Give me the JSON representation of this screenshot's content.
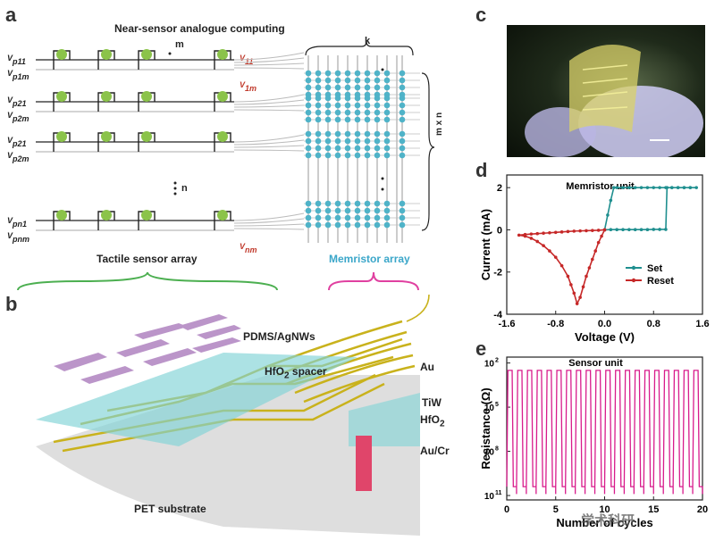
{
  "panels": {
    "a": {
      "label": "a",
      "title": "Near-sensor analogue computing",
      "m_label": "m",
      "k_label": "k",
      "n_label": "n",
      "mxn_label": "m x n",
      "dots": "• • •",
      "row_labels": [
        [
          "V",
          "p11",
          "V",
          "p1m"
        ],
        [
          "V",
          "p21",
          "V",
          "p2m"
        ],
        [
          "V",
          "p21",
          "V",
          "p2m"
        ],
        [
          "V",
          "pn1",
          "V",
          "pnm"
        ]
      ],
      "out_labels": [
        "V",
        "11",
        "V",
        "1m",
        "V",
        "nm"
      ],
      "caption_left": "Tactile sensor array",
      "caption_right": "Memristor array"
    },
    "b": {
      "label": "b",
      "layers": [
        "PDMS/AgNWs",
        "HfO",
        "2",
        " spacer",
        "Au",
        "TiW",
        "HfO",
        "2",
        "Au/Cr",
        "PET substrate"
      ]
    },
    "c": {
      "label": "c"
    },
    "d": {
      "label": "d"
    },
    "e": {
      "label": "e"
    },
    "watermark": "学术科研"
  },
  "chart_data": [
    {
      "type": "line",
      "panel": "d",
      "title": "Memristor unit",
      "xlabel": "Voltage (V)",
      "ylabel": "Current (mA)",
      "xlim": [
        -1.6,
        1.6
      ],
      "ylim": [
        -4,
        2.6
      ],
      "xticks": [
        "-1.6",
        "-0.8",
        "0.0",
        "0.8",
        "1.6"
      ],
      "yticks": [
        "-4",
        "-2",
        "0",
        "2"
      ],
      "legend": "right",
      "series": [
        {
          "name": "Set",
          "color": "#1f8f8f",
          "x": [
            0.0,
            0.1,
            0.2,
            0.3,
            0.4,
            0.5,
            0.6,
            0.7,
            0.8,
            0.9,
            1.0,
            1.02,
            1.1,
            1.2,
            1.3,
            1.4,
            1.5,
            1.4,
            1.3,
            1.2,
            1.1,
            1.0,
            0.9,
            0.8,
            0.7,
            0.6,
            0.5,
            0.4,
            0.3,
            0.2,
            0.15,
            0.1,
            0.05,
            0.0
          ],
          "y": [
            0.0,
            0.01,
            0.01,
            0.01,
            0.01,
            0.01,
            0.01,
            0.01,
            0.02,
            0.02,
            0.02,
            2.0,
            2.0,
            2.0,
            2.0,
            2.0,
            2.0,
            2.0,
            2.0,
            2.0,
            2.0,
            2.0,
            2.0,
            2.0,
            2.0,
            2.0,
            2.0,
            2.0,
            2.0,
            2.0,
            2.0,
            1.4,
            0.7,
            0.0
          ]
        },
        {
          "name": "Reset",
          "color": "#c62828",
          "x": [
            0.0,
            -0.05,
            -0.1,
            -0.15,
            -0.2,
            -0.25,
            -0.3,
            -0.35,
            -0.4,
            -0.45,
            -0.5,
            -0.55,
            -0.6,
            -0.7,
            -0.8,
            -0.9,
            -1.0,
            -1.1,
            -1.2,
            -1.3,
            -1.4,
            -1.3,
            -1.2,
            -1.1,
            -1.0,
            -0.9,
            -0.8,
            -0.7,
            -0.6,
            -0.5,
            -0.4,
            -0.3,
            -0.2,
            -0.1,
            0.0
          ],
          "y": [
            0.0,
            -0.3,
            -0.6,
            -1.0,
            -1.4,
            -1.8,
            -2.2,
            -2.7,
            -3.2,
            -3.5,
            -3.0,
            -2.6,
            -2.2,
            -1.7,
            -1.3,
            -1.0,
            -0.75,
            -0.55,
            -0.4,
            -0.3,
            -0.25,
            -0.22,
            -0.2,
            -0.18,
            -0.16,
            -0.14,
            -0.12,
            -0.1,
            -0.08,
            -0.06,
            -0.05,
            -0.04,
            -0.03,
            -0.02,
            0.0
          ]
        }
      ]
    },
    {
      "type": "line",
      "panel": "e",
      "title": "Sensor unit",
      "xlabel": "Number of cycles",
      "ylabel": "Resistance (Ω)",
      "xlim": [
        0,
        20
      ],
      "xticks": [
        "0",
        "5",
        "10",
        "15",
        "20"
      ],
      "yticks_log_exp": [
        2,
        5,
        8,
        11
      ],
      "ylim_log": [
        11,
        2
      ],
      "color": "#d81b8c",
      "cycles": 20,
      "high_exp": 2.5,
      "low_exp": 10.4
    }
  ]
}
